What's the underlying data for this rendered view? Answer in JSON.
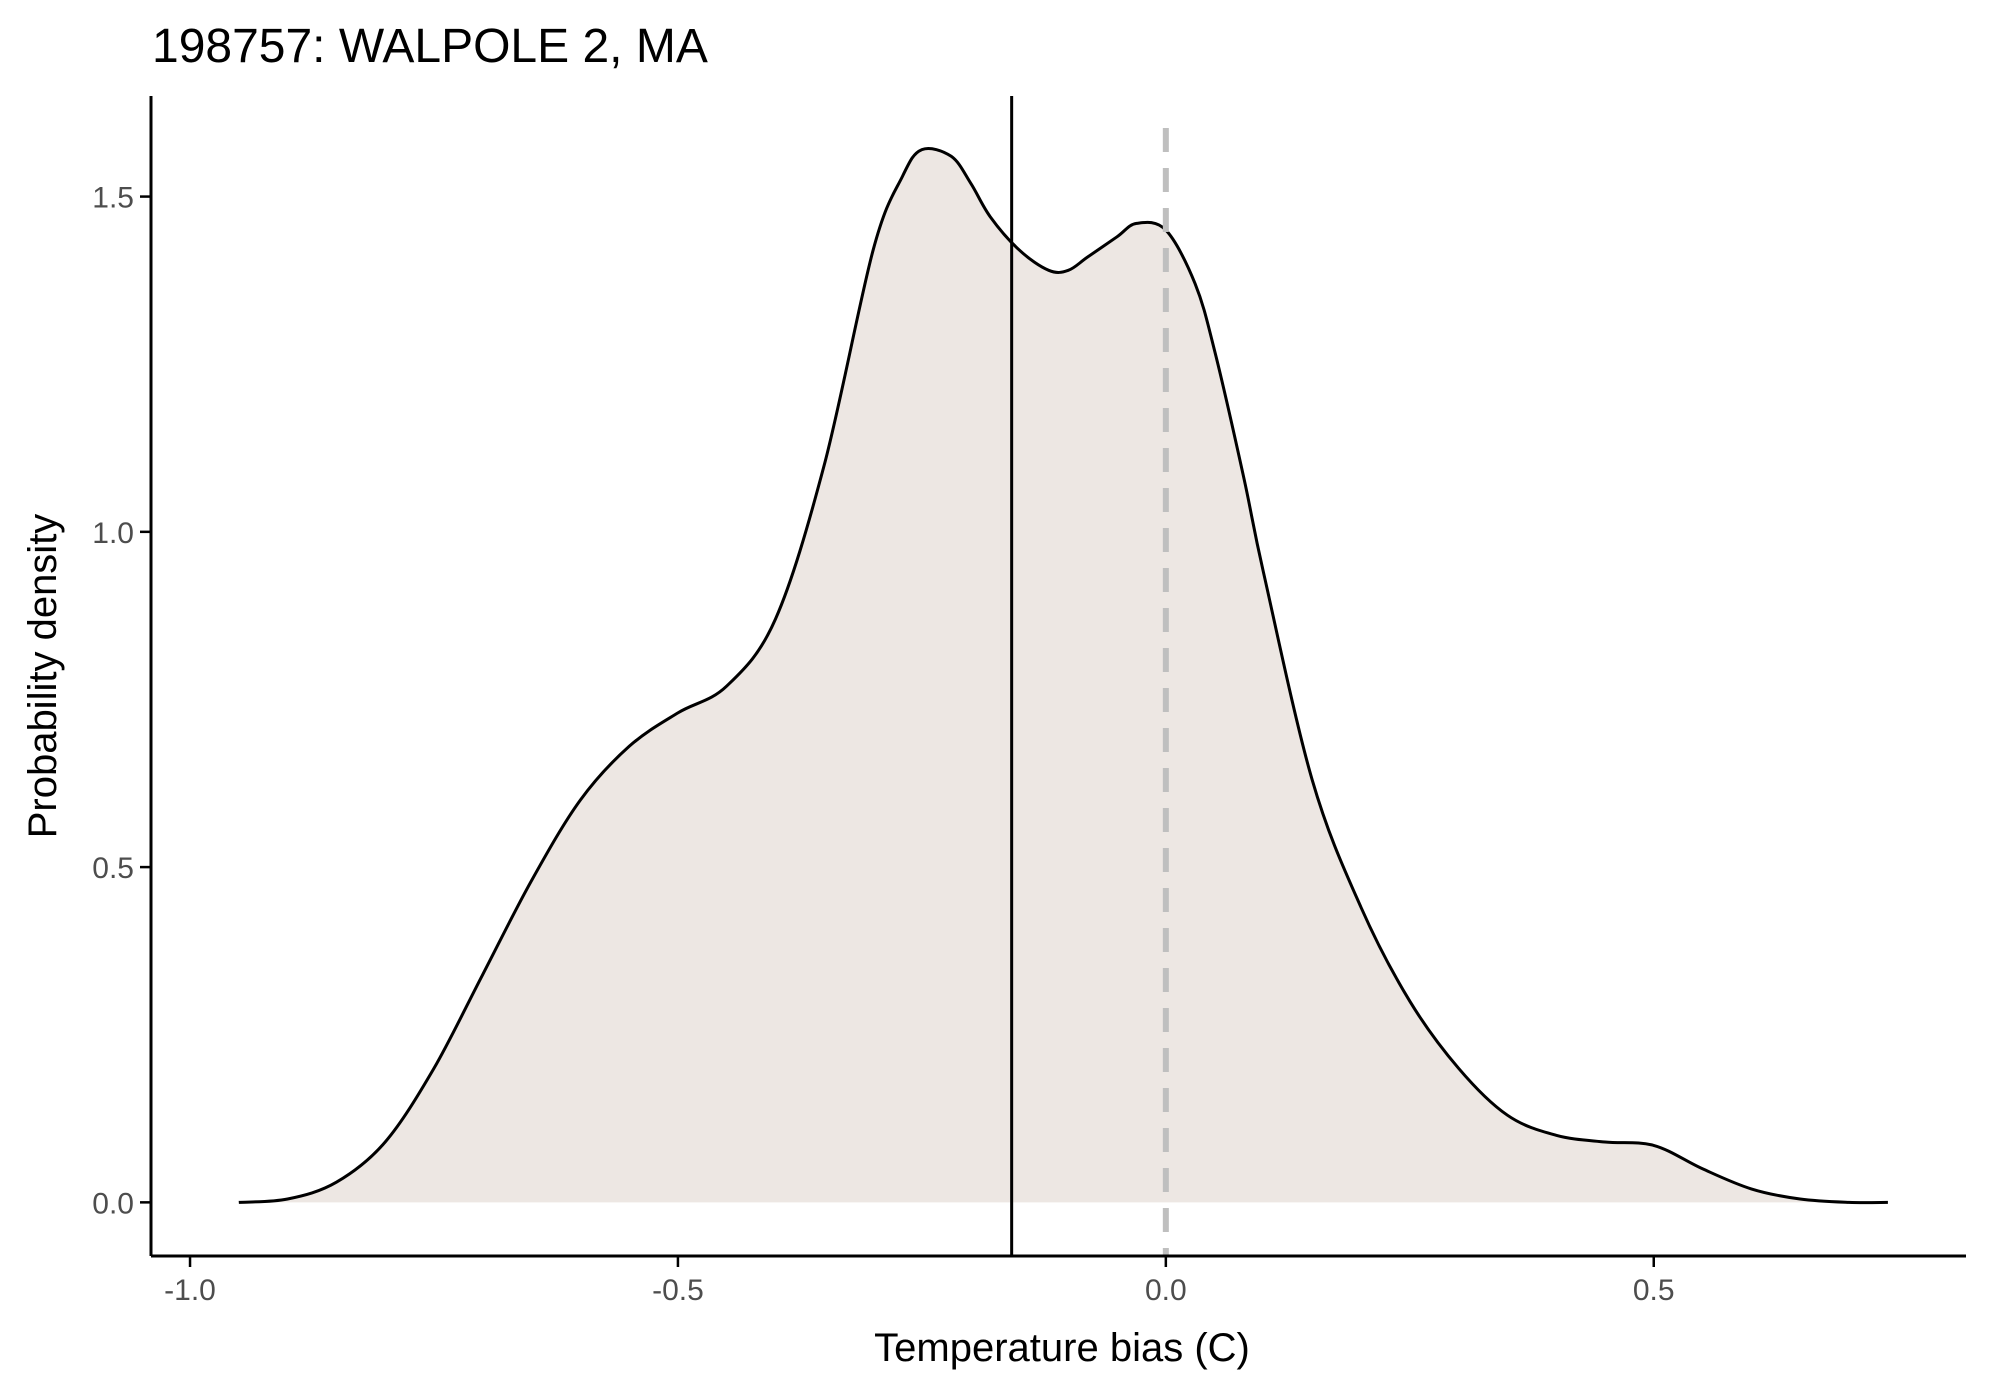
{
  "chart_data": {
    "type": "area",
    "title": "198757: WALPOLE 2, MA",
    "xlabel": "Temperature bias (C)",
    "ylabel": "Probability density",
    "xlim": [
      -1.04,
      0.82
    ],
    "ylim": [
      -0.08,
      1.65
    ],
    "xticks": [
      -1.0,
      -0.5,
      0.0,
      0.5
    ],
    "xtick_labels": [
      "-1.0",
      "-0.5",
      "0.0",
      "0.5"
    ],
    "yticks": [
      0.0,
      0.5,
      1.0,
      1.5
    ],
    "ytick_labels": [
      "0.0",
      "0.5",
      "1.0",
      "1.5"
    ],
    "grid": false,
    "fill_color": "#ede7e3",
    "line_color": "#000000",
    "series": [
      {
        "x": [
          -0.95,
          -0.9,
          -0.85,
          -0.8,
          -0.75,
          -0.7,
          -0.65,
          -0.6,
          -0.55,
          -0.5,
          -0.45,
          -0.4,
          -0.35,
          -0.3,
          -0.27,
          -0.25,
          -0.22,
          -0.2,
          -0.18,
          -0.15,
          -0.12,
          -0.1,
          -0.08,
          -0.05,
          -0.03,
          0.0,
          0.03,
          0.05,
          0.08,
          0.1,
          0.15,
          0.2,
          0.25,
          0.3,
          0.35,
          0.4,
          0.45,
          0.5,
          0.55,
          0.6,
          0.65,
          0.7,
          0.74
        ],
        "y": [
          0.0,
          0.005,
          0.03,
          0.09,
          0.2,
          0.34,
          0.48,
          0.6,
          0.68,
          0.73,
          0.77,
          0.87,
          1.1,
          1.42,
          1.53,
          1.57,
          1.56,
          1.52,
          1.47,
          1.42,
          1.39,
          1.39,
          1.41,
          1.44,
          1.46,
          1.45,
          1.37,
          1.27,
          1.08,
          0.94,
          0.63,
          0.44,
          0.3,
          0.2,
          0.13,
          0.1,
          0.09,
          0.085,
          0.05,
          0.02,
          0.005,
          0.0,
          0.0
        ]
      }
    ],
    "reference_lines": [
      {
        "x": -0.158,
        "style": "solid",
        "color": "#000000"
      },
      {
        "x": 0.0,
        "style": "dashed",
        "color": "#bfbfbf"
      }
    ]
  }
}
